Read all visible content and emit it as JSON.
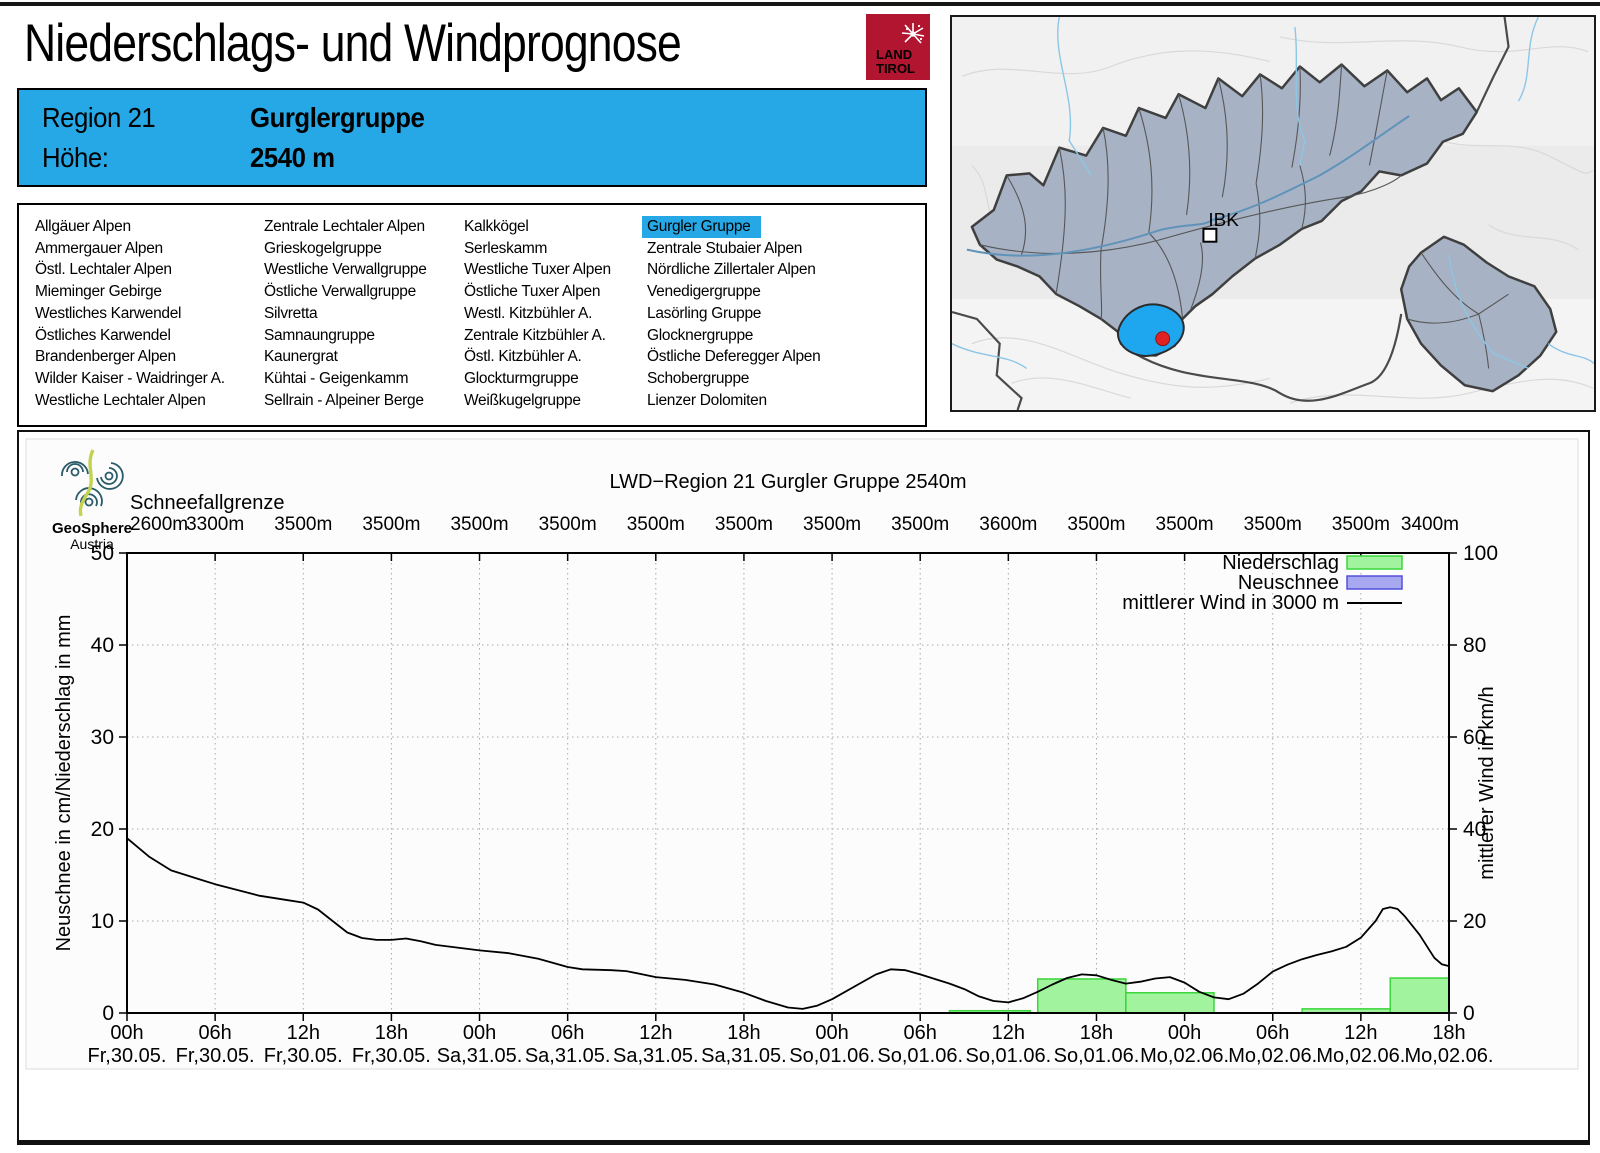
{
  "header": {
    "title": "Niederschlags- und Windprognose",
    "logo": {
      "line1": "LAND",
      "line2": "TIROL"
    }
  },
  "info_box": {
    "region_label": "Region 21",
    "region_name": "Gurglergruppe",
    "hoehe_label": "Höhe:",
    "hoehe_value": "2540 m"
  },
  "region_list": {
    "selected": "Gurgler Gruppe",
    "columns": [
      [
        "Allgäuer Alpen",
        "Ammergauer Alpen",
        "Östl. Lechtaler Alpen",
        "Mieminger Gebirge",
        "Westliches Karwendel",
        "Östliches Karwendel",
        "Brandenberger Alpen",
        "Wilder Kaiser - Waidringer A.",
        "Westliche Lechtaler Alpen"
      ],
      [
        "Zentrale Lechtaler Alpen",
        "Grieskogelgruppe",
        "Westliche Verwallgruppe",
        "Östliche Verwallgruppe",
        "Silvretta",
        "Samnaungruppe",
        "Kaunergrat",
        "Kühtai - Geigenkamm",
        "Sellrain - Alpeiner Berge"
      ],
      [
        "Kalkkögel",
        "Serleskamm",
        "Westliche Tuxer Alpen",
        "Östliche Tuxer Alpen",
        "Westl. Kitzbühler A.",
        "Zentrale Kitzbühler A.",
        "Östl. Kitzbühler A.",
        "Glockturmgruppe",
        "Weißkugelgruppe"
      ],
      [
        "Gurgler Gruppe",
        "Zentrale Stubaier Alpen",
        "Nördliche Zillertaler Alpen",
        "Venedigergruppe",
        "Lasörling Gruppe",
        "Glocknergruppe",
        "Östliche Deferegger Alpen",
        "Schobergruppe",
        "Lienzer Dolomiten"
      ]
    ]
  },
  "map": {
    "ibk": "IBK",
    "highlight_color": "#1ea6ee"
  },
  "geosphere": {
    "name": "GeoSphere",
    "sub": "Austria"
  },
  "chart_data": {
    "type": "line+bar",
    "title": "LWD−Region 21 Gurgler Gruppe 2540m",
    "snowline_label": "Schneefallgrenze",
    "snowline_values": [
      "2600m",
      "3300m",
      "3500m",
      "3500m",
      "3500m",
      "3500m",
      "3500m",
      "3500m",
      "3500m",
      "3500m",
      "3600m",
      "3500m",
      "3500m",
      "3500m",
      "3500m",
      "3400m"
    ],
    "hours_total": 90,
    "y_left": {
      "label": "Neuschnee in cm/Niederschlag in mm",
      "min": 0,
      "max": 50,
      "ticks": [
        0,
        10,
        20,
        30,
        40,
        50
      ]
    },
    "y_right": {
      "label": "mittlerer Wind in km/h",
      "min": 0,
      "max": 100,
      "ticks": [
        0,
        20,
        40,
        60,
        80,
        100
      ]
    },
    "x_ticks": [
      {
        "time": "00h",
        "date": "Fr,30.05."
      },
      {
        "time": "06h",
        "date": "Fr,30.05."
      },
      {
        "time": "12h",
        "date": "Fr,30.05."
      },
      {
        "time": "18h",
        "date": "Fr,30.05."
      },
      {
        "time": "00h",
        "date": "Sa,31.05."
      },
      {
        "time": "06h",
        "date": "Sa,31.05."
      },
      {
        "time": "12h",
        "date": "Sa,31.05."
      },
      {
        "time": "18h",
        "date": "Sa,31.05."
      },
      {
        "time": "00h",
        "date": "So,01.06."
      },
      {
        "time": "06h",
        "date": "So,01.06."
      },
      {
        "time": "12h",
        "date": "So,01.06."
      },
      {
        "time": "18h",
        "date": "So,01.06."
      },
      {
        "time": "00h",
        "date": "Mo,02.06."
      },
      {
        "time": "06h",
        "date": "Mo,02.06."
      },
      {
        "time": "12h",
        "date": "Mo,02.06."
      },
      {
        "time": "18h",
        "date": "Mo,02.06."
      }
    ],
    "legend": [
      {
        "label": "Niederschlag",
        "type": "box",
        "fill": "#a2f39e",
        "stroke": "#3bd63b"
      },
      {
        "label": "Neuschnee",
        "type": "box",
        "fill": "#a8a8f0",
        "stroke": "#5151dc"
      },
      {
        "label": "mittlerer Wind in 3000 m",
        "type": "line",
        "stroke": "#000000"
      }
    ],
    "bars_niederschlag_mm": [
      {
        "start_h": 56,
        "end_h": 61.5,
        "value": 0.25
      },
      {
        "start_h": 62,
        "end_h": 68,
        "value": 3.7
      },
      {
        "start_h": 68,
        "end_h": 74,
        "value": 2.2
      },
      {
        "start_h": 80,
        "end_h": 86,
        "value": 0.45
      },
      {
        "start_h": 86,
        "end_h": 90,
        "value": 3.8
      }
    ],
    "bars_neuschnee_cm": [],
    "wind_kmh": [
      [
        0,
        38
      ],
      [
        1.5,
        34
      ],
      [
        3,
        31
      ],
      [
        5,
        29
      ],
      [
        6,
        28
      ],
      [
        9,
        25.5
      ],
      [
        11,
        24.5
      ],
      [
        12,
        24
      ],
      [
        13,
        22.5
      ],
      [
        14,
        20
      ],
      [
        15,
        17.5
      ],
      [
        16,
        16.3
      ],
      [
        17,
        15.9
      ],
      [
        18,
        15.9
      ],
      [
        19,
        16.2
      ],
      [
        20,
        15.6
      ],
      [
        21,
        14.8
      ],
      [
        24,
        13.6
      ],
      [
        26,
        13
      ],
      [
        28,
        11.8
      ],
      [
        30,
        10
      ],
      [
        31,
        9.5
      ],
      [
        33,
        9.3
      ],
      [
        34,
        9.1
      ],
      [
        36,
        7.8
      ],
      [
        38,
        7.2
      ],
      [
        40,
        6.2
      ],
      [
        42,
        4.4
      ],
      [
        43.5,
        2.6
      ],
      [
        45,
        1.2
      ],
      [
        46,
        0.9
      ],
      [
        47,
        1.6
      ],
      [
        48,
        3
      ],
      [
        50,
        6.6
      ],
      [
        51,
        8.4
      ],
      [
        52,
        9.5
      ],
      [
        53,
        9.3
      ],
      [
        54,
        8.4
      ],
      [
        56,
        6.4
      ],
      [
        57,
        5.2
      ],
      [
        58,
        3.6
      ],
      [
        59,
        2.6
      ],
      [
        60,
        2.3
      ],
      [
        61,
        3.2
      ],
      [
        62,
        4.6
      ],
      [
        63,
        6.2
      ],
      [
        64,
        7.6
      ],
      [
        65,
        8.4
      ],
      [
        66,
        8.2
      ],
      [
        67,
        7.2
      ],
      [
        68,
        6.4
      ],
      [
        69,
        6.8
      ],
      [
        70,
        7.5
      ],
      [
        71,
        7.8
      ],
      [
        72,
        6.6
      ],
      [
        73,
        4.6
      ],
      [
        74,
        3.4
      ],
      [
        75,
        3.0
      ],
      [
        76,
        4.2
      ],
      [
        77,
        6.4
      ],
      [
        78,
        9
      ],
      [
        79,
        10.5
      ],
      [
        80,
        11.7
      ],
      [
        81,
        12.6
      ],
      [
        82,
        13.4
      ],
      [
        83,
        14.4
      ],
      [
        84,
        16.4
      ],
      [
        85,
        20
      ],
      [
        85.5,
        22.6
      ],
      [
        86,
        23
      ],
      [
        86.5,
        22.6
      ],
      [
        87,
        21
      ],
      [
        88,
        17
      ],
      [
        89,
        12
      ],
      [
        89.5,
        10.6
      ],
      [
        90,
        10.2
      ]
    ]
  }
}
